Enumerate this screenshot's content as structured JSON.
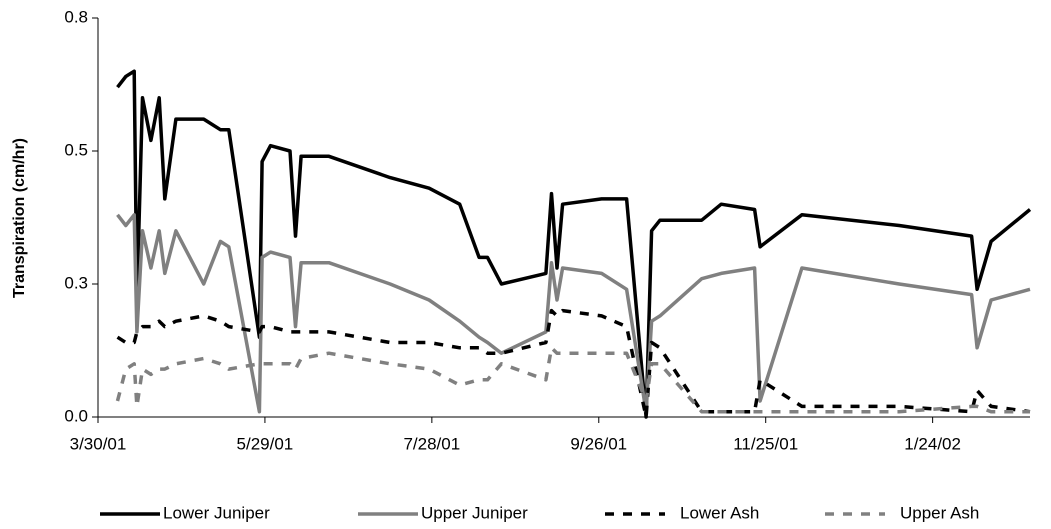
{
  "chart_data": {
    "type": "line",
    "y_label": "Transpiration (cm/hr)",
    "x": [
      "4/6/01",
      "4/9/01",
      "4/12/01",
      "4/13/01",
      "4/15/01",
      "4/18/01",
      "4/21/01",
      "4/23/01",
      "4/27/01",
      "5/7/01",
      "5/13/01",
      "5/16/01",
      "5/27/01",
      "5/28/01",
      "5/31/01",
      "6/7/01",
      "6/9/01",
      "6/11/01",
      "6/21/01",
      "7/13/01",
      "7/27/01",
      "8/7/01",
      "8/14/01",
      "8/17/01",
      "8/22/01",
      "9/7/01",
      "9/9/01",
      "9/11/01",
      "9/13/01",
      "9/27/01",
      "10/6/01",
      "10/13/01",
      "10/15/01",
      "10/18/01",
      "11/2/01",
      "11/9/01",
      "11/21/01",
      "11/23/01",
      "12/8/01",
      "1/12/02",
      "2/7/02",
      "2/9/02",
      "2/14/02",
      "2/28/02"
    ],
    "series": [
      {
        "name": "Lower Juniper",
        "color": "#000000",
        "dashed": false,
        "values": [
          0.62,
          0.64,
          0.65,
          0.22,
          0.6,
          0.52,
          0.6,
          0.41,
          0.56,
          0.56,
          0.54,
          0.54,
          0.15,
          0.48,
          0.51,
          0.5,
          0.34,
          0.49,
          0.49,
          0.45,
          0.43,
          0.4,
          0.3,
          0.3,
          0.25,
          0.27,
          0.42,
          0.28,
          0.4,
          0.41,
          0.41,
          0.0,
          0.35,
          0.37,
          0.37,
          0.4,
          0.39,
          0.32,
          0.38,
          0.36,
          0.34,
          0.24,
          0.33,
          0.39
        ]
      },
      {
        "name": "Upper Juniper",
        "color": "#808080",
        "dashed": false,
        "values": [
          0.38,
          0.36,
          0.38,
          0.16,
          0.35,
          0.28,
          0.35,
          0.27,
          0.35,
          0.25,
          0.33,
          0.32,
          0.01,
          0.3,
          0.31,
          0.3,
          0.17,
          0.29,
          0.29,
          0.25,
          0.22,
          0.18,
          0.15,
          0.14,
          0.12,
          0.16,
          0.29,
          0.22,
          0.28,
          0.27,
          0.24,
          0.01,
          0.18,
          0.19,
          0.26,
          0.27,
          0.28,
          0.03,
          0.28,
          0.25,
          0.23,
          0.13,
          0.22,
          0.24
        ]
      },
      {
        "name": "Lower Ash",
        "color": "#000000",
        "dashed": true,
        "values": [
          0.15,
          0.14,
          0.14,
          0.16,
          0.17,
          0.17,
          0.18,
          0.17,
          0.18,
          0.19,
          0.18,
          0.17,
          0.16,
          0.17,
          0.17,
          0.16,
          0.16,
          0.16,
          0.16,
          0.14,
          0.14,
          0.13,
          0.13,
          0.12,
          0.12,
          0.14,
          0.2,
          0.19,
          0.2,
          0.19,
          0.17,
          0.0,
          0.14,
          0.13,
          0.01,
          0.01,
          0.01,
          0.07,
          0.02,
          0.02,
          0.01,
          0.05,
          0.02,
          0.01
        ]
      },
      {
        "name": "Upper Ash",
        "color": "#808080",
        "dashed": true,
        "values": [
          0.03,
          0.09,
          0.1,
          0.02,
          0.09,
          0.08,
          0.09,
          0.09,
          0.1,
          0.11,
          0.1,
          0.09,
          0.1,
          0.1,
          0.1,
          0.1,
          0.09,
          0.11,
          0.12,
          0.1,
          0.09,
          0.06,
          0.07,
          0.07,
          0.1,
          0.07,
          0.13,
          0.12,
          0.12,
          0.12,
          0.12,
          0.03,
          0.1,
          0.1,
          0.01,
          0.01,
          0.01,
          0.01,
          0.01,
          0.01,
          0.02,
          0.02,
          0.01,
          0.01
        ]
      }
    ],
    "xlim": [
      "3/30/01",
      "2/28/02"
    ],
    "xticks": [
      "3/30/01",
      "5/29/01",
      "7/28/01",
      "9/26/01",
      "11/25/01",
      "1/24/02"
    ],
    "ylim": [
      0,
      0.75
    ],
    "yticks": [
      {
        "value": 0,
        "label": "0.0"
      },
      {
        "value": 0.25,
        "label": "0.3"
      },
      {
        "value": 0.5,
        "label": "0.5"
      },
      {
        "value": 0.75,
        "label": "0.8"
      }
    ],
    "legend": "bottom"
  }
}
